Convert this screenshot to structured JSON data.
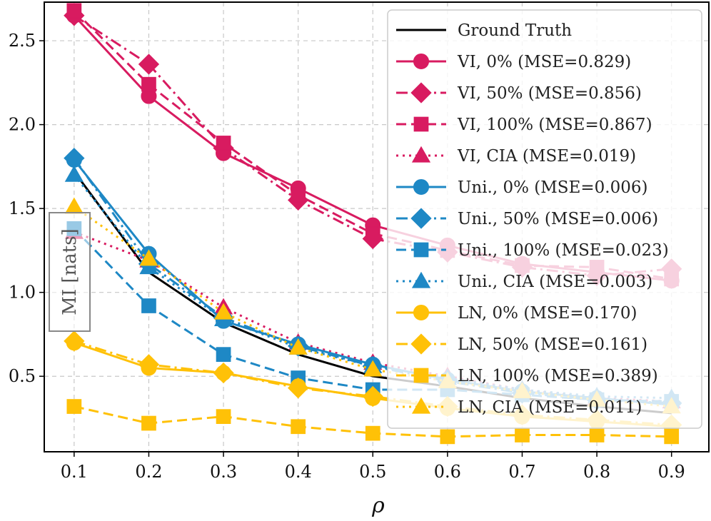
{
  "chart_data": {
    "type": "line",
    "title": "",
    "xlabel": "ρ",
    "ylabel": "MI [nats]",
    "x": [
      0.1,
      0.2,
      0.3,
      0.4,
      0.5,
      0.6,
      0.7,
      0.8,
      0.9
    ],
    "x_tick_labels": [
      "0.1",
      "0.2",
      "0.3",
      "0.4",
      "0.5",
      "0.6",
      "0.7",
      "0.8",
      "0.9"
    ],
    "y_ticks": [
      0.5,
      1.0,
      1.5,
      2.0,
      2.5
    ],
    "y_tick_labels": [
      "0.5",
      "1.0",
      "1.5",
      "2.0",
      "2.5"
    ],
    "xlim": [
      0.06,
      0.95
    ],
    "ylim": [
      0.05,
      2.73
    ],
    "grid": true,
    "legend_position": "top-right",
    "colors": {
      "ground_truth": "#000000",
      "vi": "#d81b60",
      "uni": "#1e88c5",
      "ln": "#ffc107"
    },
    "series": [
      {
        "name": "Ground Truth",
        "color": "#000000",
        "dash": "solid",
        "marker": "none",
        "values": [
          1.72,
          1.12,
          0.82,
          0.63,
          0.5,
          0.44,
          0.37,
          0.32,
          0.28
        ]
      },
      {
        "name": "VI, 0% (MSE=0.829)",
        "color": "#d81b60",
        "dash": "solid",
        "marker": "circle",
        "values": [
          2.65,
          2.17,
          1.83,
          1.62,
          1.4,
          1.28,
          1.17,
          1.12,
          1.07
        ]
      },
      {
        "name": "VI, 50% (MSE=0.856)",
        "color": "#d81b60",
        "dash": "dashdot",
        "marker": "diamond",
        "values": [
          2.65,
          2.36,
          1.86,
          1.55,
          1.32,
          1.24,
          1.15,
          1.1,
          1.14
        ]
      },
      {
        "name": "VI, 100% (MSE=0.867)",
        "color": "#d81b60",
        "dash": "dashed",
        "marker": "square",
        "values": [
          2.68,
          2.24,
          1.89,
          1.58,
          1.35,
          1.25,
          1.16,
          1.15,
          1.08
        ]
      },
      {
        "name": "VI, CIA (MSE=0.019)",
        "color": "#d81b60",
        "dash": "dotted",
        "marker": "triangle",
        "values": [
          1.36,
          1.19,
          0.91,
          0.7,
          0.58,
          0.5,
          0.42,
          0.37,
          0.35
        ]
      },
      {
        "name": "Uni., 0% (MSE=0.006)",
        "color": "#1e88c5",
        "dash": "solid",
        "marker": "circle",
        "values": [
          1.79,
          1.23,
          0.83,
          0.69,
          0.57,
          0.48,
          0.41,
          0.37,
          0.33
        ]
      },
      {
        "name": "Uni., 50% (MSE=0.006)",
        "color": "#1e88c5",
        "dash": "dashdot",
        "marker": "diamond",
        "values": [
          1.8,
          1.17,
          0.85,
          0.68,
          0.56,
          0.47,
          0.4,
          0.36,
          0.34
        ]
      },
      {
        "name": "Uni., 100% (MSE=0.023)",
        "color": "#1e88c5",
        "dash": "dashed",
        "marker": "square",
        "values": [
          1.38,
          0.92,
          0.63,
          0.49,
          0.42,
          0.42,
          0.39,
          0.36,
          0.35
        ]
      },
      {
        "name": "Uni., CIA (MSE=0.003)",
        "color": "#1e88c5",
        "dash": "dotted",
        "marker": "triangle",
        "values": [
          1.7,
          1.15,
          0.84,
          0.67,
          0.56,
          0.49,
          0.42,
          0.38,
          0.37
        ]
      },
      {
        "name": "LN, 0% (MSE=0.170)",
        "color": "#ffc107",
        "dash": "solid",
        "marker": "circle",
        "values": [
          0.7,
          0.55,
          0.52,
          0.44,
          0.37,
          0.31,
          0.26,
          0.23,
          0.2
        ]
      },
      {
        "name": "LN, 50% (MSE=0.161)",
        "color": "#ffc107",
        "dash": "dashdot",
        "marker": "diamond",
        "values": [
          0.71,
          0.57,
          0.52,
          0.43,
          0.38,
          0.32,
          0.27,
          0.24,
          0.21
        ]
      },
      {
        "name": "LN, 100% (MSE=0.389)",
        "color": "#ffc107",
        "dash": "dashed",
        "marker": "square",
        "values": [
          0.32,
          0.22,
          0.26,
          0.2,
          0.16,
          0.14,
          0.15,
          0.15,
          0.14
        ]
      },
      {
        "name": "LN, CIA (MSE=0.011)",
        "color": "#ffc107",
        "dash": "dotted",
        "marker": "triangle",
        "values": [
          1.51,
          1.2,
          0.88,
          0.67,
          0.54,
          0.47,
          0.41,
          0.36,
          0.32
        ]
      }
    ]
  }
}
